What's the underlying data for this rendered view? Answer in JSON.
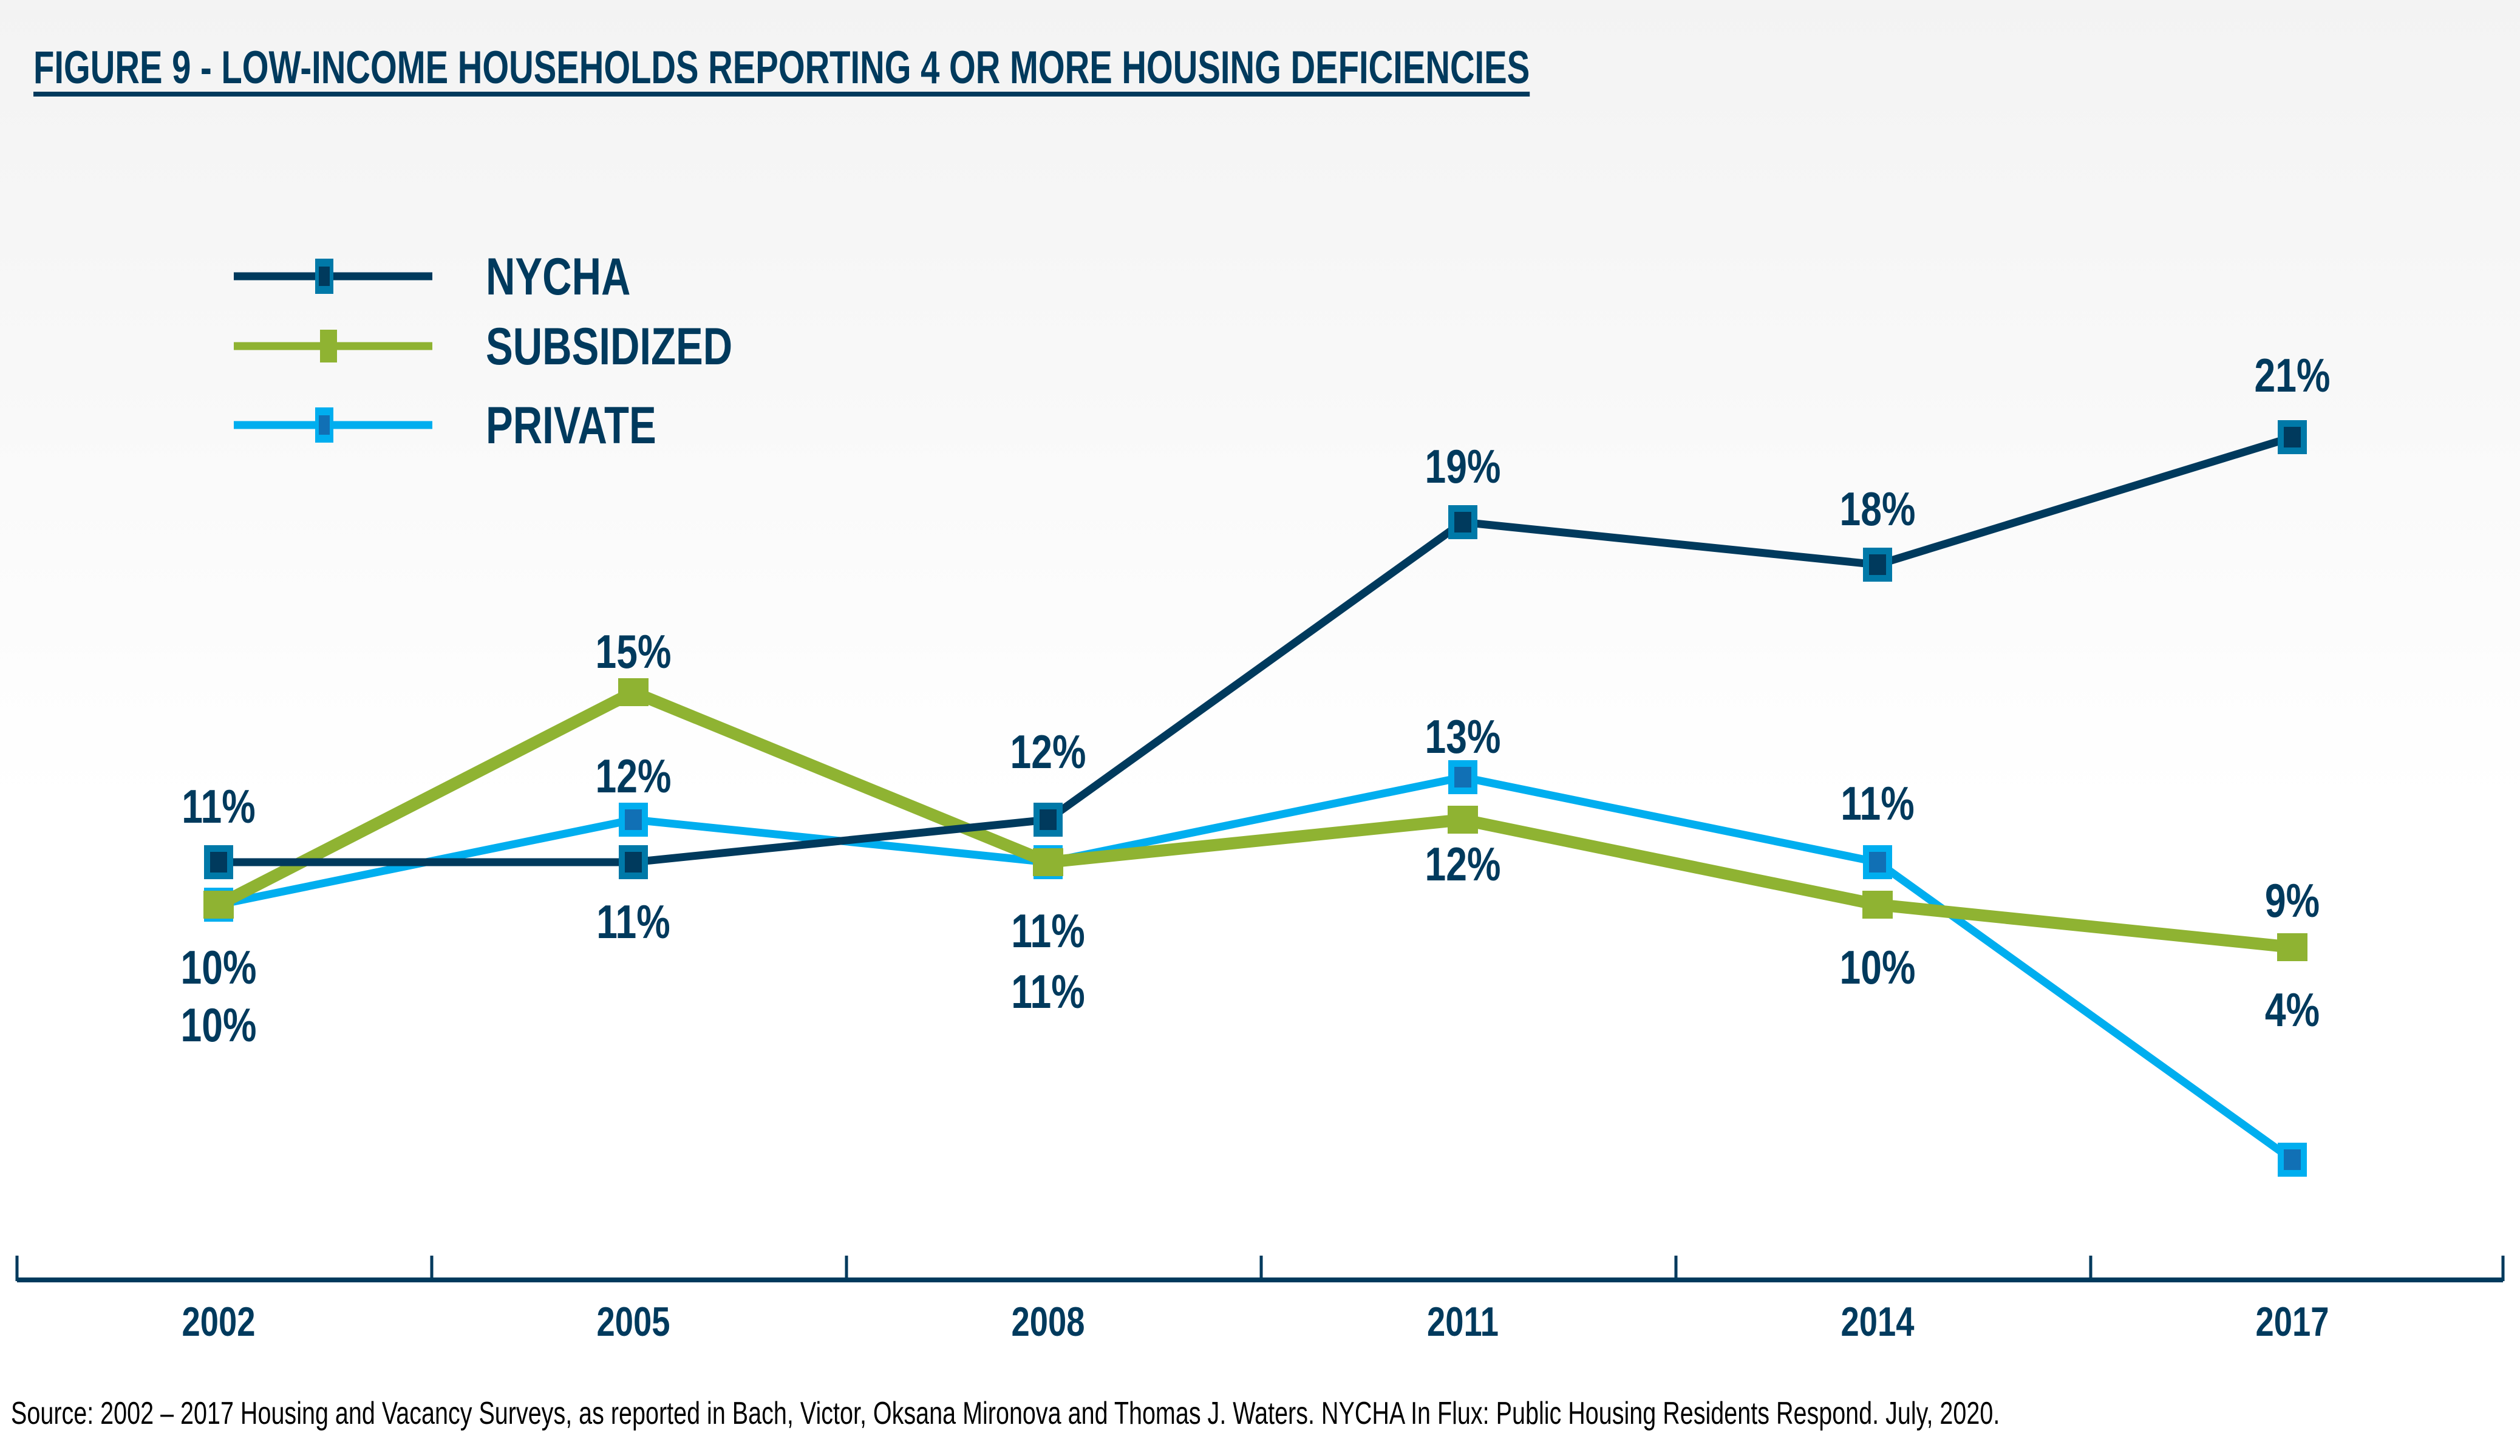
{
  "title": "FIGURE 9 - LOW-INCOME HOUSEHOLDS REPORTING 4 OR MORE HOUSING DEFICIENCIES",
  "source": "Source: 2002 – 2017 Housing and Vacancy Surveys, as reported in Bach, Victor, Oksana Mironova and Thomas J. Waters. NYCHA In Flux: Public Housing Residents Respond. July, 2020.",
  "colors": {
    "text": "#003a5d",
    "nycha_line": "#003a5d",
    "nycha_marker_outer": "#0079a8",
    "nycha_marker_inner": "#003a5d",
    "subsidized": "#8fb332",
    "private_line": "#00aeef",
    "private_marker_outer": "#00aeef",
    "private_marker_inner": "#1170b5",
    "axis": "#003a5d"
  },
  "chart_data": {
    "type": "line",
    "title": "FIGURE 9 - LOW-INCOME HOUSEHOLDS REPORTING 4 OR MORE HOUSING DEFICIENCIES",
    "xlabel": "",
    "ylabel": "",
    "categories": [
      "2002",
      "2005",
      "2008",
      "2011",
      "2014",
      "2017"
    ],
    "unit": "%",
    "ylim": [
      4,
      21
    ],
    "grid": false,
    "legend_position": "top-left",
    "series": [
      {
        "name": "NYCHA",
        "key": "nycha",
        "values": [
          11,
          11,
          12,
          19,
          18,
          21
        ],
        "labels": [
          "11%",
          "11%",
          "12%",
          "19%",
          "18%",
          "21%"
        ],
        "label_position": [
          "above",
          "below",
          "above",
          "above",
          "above",
          "above"
        ]
      },
      {
        "name": "SUBSIDIZED",
        "key": "subsidized",
        "values": [
          10,
          15,
          11,
          12,
          10,
          9
        ],
        "labels": [
          "10%",
          "15%",
          "11%",
          "12%",
          "10%",
          "9%"
        ],
        "label_position": [
          "below",
          "above",
          "below",
          "below",
          "below",
          "above"
        ]
      },
      {
        "name": "PRIVATE",
        "key": "private",
        "values": [
          10,
          12,
          11,
          13,
          11,
          4
        ],
        "labels": [
          "10%",
          "12%",
          "11%",
          "13%",
          "11%",
          "4%"
        ],
        "label_position": [
          "below2",
          "above",
          "below2",
          "above",
          "above",
          "abovefar"
        ]
      }
    ]
  }
}
